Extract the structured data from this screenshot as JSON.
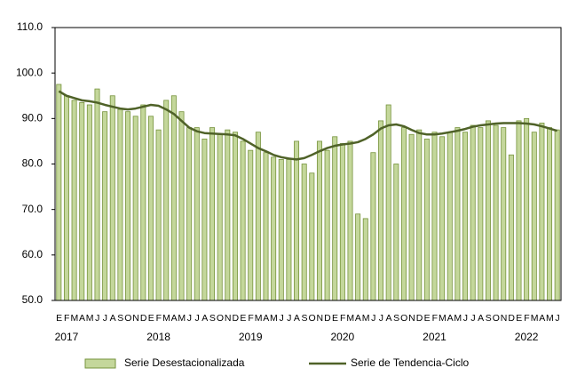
{
  "chart_data": {
    "type": "bar_line",
    "categories": [
      "E",
      "F",
      "M",
      "A",
      "M",
      "J",
      "J",
      "A",
      "S",
      "O",
      "N",
      "D",
      "E",
      "F",
      "M",
      "A",
      "M",
      "J",
      "J",
      "A",
      "S",
      "O",
      "N",
      "D",
      "E",
      "F",
      "M",
      "A",
      "M",
      "J",
      "J",
      "A",
      "S",
      "O",
      "N",
      "D",
      "E",
      "F",
      "M",
      "A",
      "M",
      "J",
      "J",
      "A",
      "S",
      "O",
      "N",
      "D",
      "E",
      "F",
      "M",
      "A",
      "M",
      "J",
      "J",
      "A",
      "S",
      "O",
      "N",
      "D",
      "E",
      "F",
      "M",
      "A",
      "M",
      "J"
    ],
    "year_labels": [
      "2017",
      "2018",
      "2019",
      "2020",
      "2021",
      "2022"
    ],
    "series": [
      {
        "name": "Serie Desestacionalizada",
        "kind": "bar",
        "color": "#c4d79b",
        "edge_color": "#76933c",
        "values": [
          97.5,
          95,
          94,
          93.5,
          93,
          96.5,
          91.5,
          95,
          92,
          91.5,
          90.5,
          93,
          90.5,
          87.5,
          94,
          95,
          91.5,
          88,
          88,
          85.5,
          88,
          86.5,
          87.5,
          87,
          85,
          83,
          87,
          82.5,
          81.5,
          81,
          81,
          85,
          80,
          78,
          85,
          83,
          86,
          84.5,
          85,
          69,
          68,
          82.5,
          89.5,
          93,
          80,
          88,
          86.5,
          87.5,
          85.5,
          87,
          86,
          87,
          88,
          87,
          88.5,
          88,
          89.5,
          88.5,
          88,
          82,
          89.5,
          90,
          87,
          89,
          88,
          87.5
        ]
      },
      {
        "name": "Serie de Tendencia-Ciclo",
        "kind": "line",
        "color": "#4f6228",
        "values": [
          96,
          95,
          94.5,
          94,
          93.8,
          93.5,
          93,
          92.6,
          92.2,
          92,
          92.2,
          92.6,
          93,
          92.8,
          92,
          91,
          89.5,
          88,
          87.2,
          86.8,
          86.7,
          86.6,
          86.5,
          86.3,
          85.5,
          84.5,
          83.5,
          82.8,
          82,
          81.5,
          81.2,
          81,
          81.3,
          82,
          82.8,
          83.5,
          84,
          84.3,
          84.5,
          84.8,
          85.5,
          86.5,
          87.8,
          88.5,
          88.7,
          88.3,
          87.5,
          86.8,
          86.5,
          86.5,
          86.7,
          87,
          87.3,
          87.7,
          88.2,
          88.5,
          88.7,
          88.9,
          89,
          89,
          89,
          88.9,
          88.7,
          88.3,
          87.8,
          87.3
        ]
      }
    ],
    "ylim": [
      50,
      110
    ],
    "yticks": [
      {
        "value": 50,
        "label": "50.0"
      },
      {
        "value": 60,
        "label": "60.0"
      },
      {
        "value": 70,
        "label": "70.0"
      },
      {
        "value": 80,
        "label": "80.0"
      },
      {
        "value": 90,
        "label": "90.0"
      },
      {
        "value": 100,
        "label": "100.0"
      },
      {
        "value": 110,
        "label": "110.0"
      }
    ],
    "legend": "bottom"
  }
}
